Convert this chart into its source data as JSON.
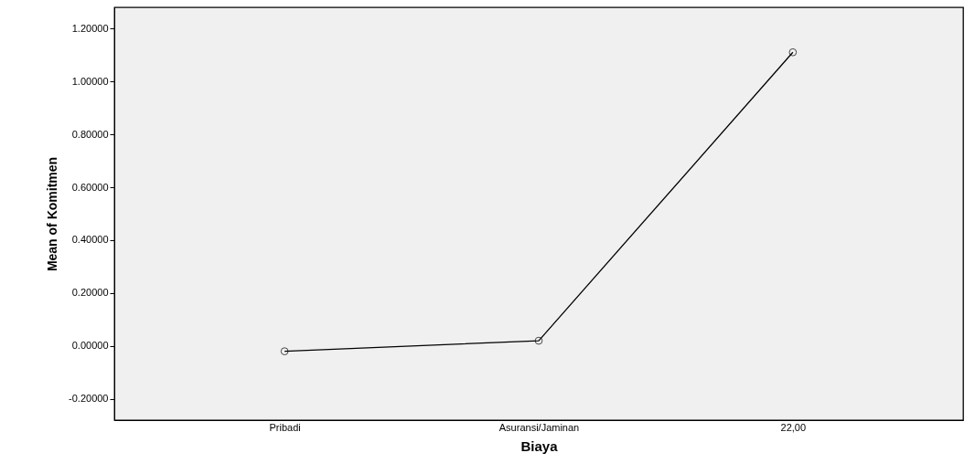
{
  "chart_data": {
    "type": "line",
    "xlabel": "Biaya",
    "ylabel": "Mean of Komitmen",
    "categories": [
      "Pribadi",
      "Asuransi/Jaminan",
      "22,00"
    ],
    "series": [
      {
        "color": "#000000",
        "values": [
          -0.02,
          0.02,
          1.11
        ]
      }
    ],
    "ylim": [
      -0.28,
      1.28
    ],
    "yticks": [
      {
        "value": -0.2,
        "label": "-0.20000"
      },
      {
        "value": 0,
        "label": "0.00000"
      },
      {
        "value": 0.2,
        "label": "0.20000"
      },
      {
        "value": 0.4,
        "label": "0.40000"
      },
      {
        "value": 0.6,
        "label": "0.60000"
      },
      {
        "value": 0.8,
        "label": "0.80000"
      },
      {
        "value": 1.0,
        "label": "1.00000"
      },
      {
        "value": 1.2,
        "label": "1.20000"
      }
    ],
    "grid": false,
    "marker": "circle",
    "line_style": "solid"
  }
}
